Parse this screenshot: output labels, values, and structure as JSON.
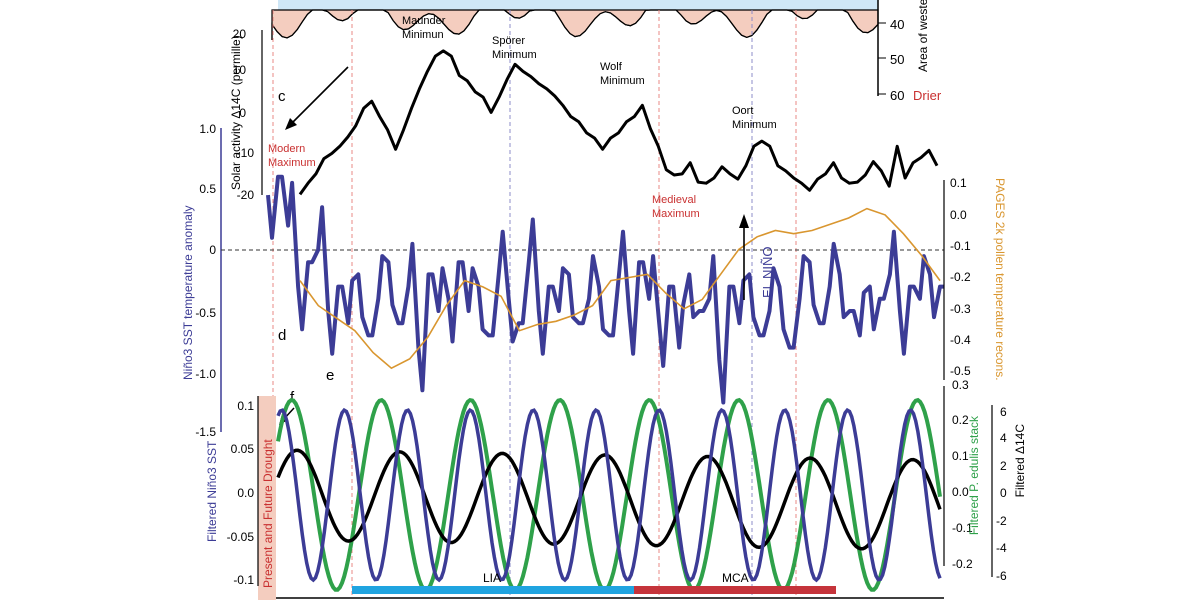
{
  "chart_data": [
    {
      "type": "area",
      "panel_label": "",
      "ylabel": "Area of western US in drought (%)",
      "ylabel_visible": "Area of wester in drought (",
      "drier_label": "Drier",
      "ticks": [
        "40",
        "50",
        "60"
      ],
      "annotations": [
        {
          "text": "Maunder Minimun"
        },
        {
          "text": "Spörer Minimum"
        },
        {
          "text": "Wolf Minimum"
        },
        {
          "text": "Oort Minimum"
        }
      ],
      "series_color": "#f4cdbf"
    },
    {
      "type": "line",
      "panel_label": "c",
      "ylabel": "Solar activity Δ14C (permille)",
      "ticks": [
        "20",
        "10",
        "0",
        "-10",
        "-20"
      ],
      "ylim": [
        -20,
        20
      ],
      "values": [
        -19,
        -17,
        -14,
        -11,
        -9,
        -8,
        -5,
        -3,
        2,
        3,
        0,
        -4,
        -8,
        -4,
        2,
        6,
        11,
        14,
        16,
        14,
        10,
        8,
        6,
        4,
        1,
        4,
        9,
        12,
        11,
        9,
        8,
        6,
        5,
        2,
        0,
        -2,
        -4,
        -6,
        -8,
        -6,
        -4,
        -2,
        0,
        2,
        -3,
        -8,
        -13,
        -15,
        -14,
        -12,
        -16,
        -17,
        -15,
        -13,
        -14,
        -16,
        -12,
        -8,
        -6,
        -8,
        -12,
        -14,
        -15,
        -17,
        -18,
        -16,
        -14,
        -12,
        -15,
        -17,
        -16,
        -15,
        -11,
        -14,
        -17,
        -8,
        -15,
        -12,
        -10,
        -9,
        -12
      ],
      "modern_maximum": "Modern Maximum",
      "medieval_maximum": "Medieval Maximum",
      "color": "#000000"
    },
    {
      "type": "line",
      "panel_label": "d",
      "ylabel": "Niño3 SST temperature anomaly",
      "ticks": [
        "1.0",
        "0.5",
        "0",
        "-0.5",
        "-1.0",
        "-1.5"
      ],
      "ylim": [
        -1.5,
        1.0
      ],
      "el_nino_label": "EL NIÑO",
      "values": [
        0.45,
        0.6,
        0.2,
        -0.3,
        -0.1,
        0.0,
        -0.5,
        -0.3,
        -0.6,
        -0.2,
        -0.7,
        -0.4,
        -0.1,
        -0.6,
        -0.3,
        -0.8,
        -0.2,
        -0.5,
        -0.4,
        -0.1,
        -0.5,
        -0.3,
        -0.7,
        -0.2,
        -0.4,
        -0.6,
        -0.1,
        -0.5,
        -0.3,
        -0.5,
        -0.2,
        -0.6,
        -0.4,
        -0.3,
        -0.7,
        -0.2,
        -0.5,
        -0.1,
        -0.4,
        -0.6,
        -0.3,
        -0.8,
        -0.2,
        -0.5,
        -0.4,
        -0.9,
        -0.3,
        -0.6,
        -0.2,
        -0.7,
        -0.5,
        -0.3,
        -0.8,
        -0.4,
        -0.1,
        -0.6,
        -0.3,
        -0.2,
        -0.5,
        -0.7,
        -0.3,
        -0.4,
        -0.2,
        -0.5,
        -0.3,
        -0.4,
        -0.2,
        -0.3
      ],
      "color": "#3c3c96"
    },
    {
      "type": "line",
      "panel_label": "e",
      "ylabel": "PAGES 2k pollen temperature recons.",
      "ticks": [
        "0.1",
        "0.0",
        "-0.1",
        "-0.2",
        "-0.3",
        "-0.4",
        "-0.5"
      ],
      "ylim": [
        -0.5,
        0.1
      ],
      "values": [
        -0.2,
        -0.28,
        -0.32,
        -0.36,
        -0.43,
        -0.48,
        -0.45,
        -0.38,
        -0.28,
        -0.2,
        -0.22,
        -0.25,
        -0.36,
        -0.34,
        -0.33,
        -0.31,
        -0.28,
        -0.2,
        -0.19,
        -0.18,
        -0.24,
        -0.29,
        -0.26,
        -0.18,
        -0.1,
        -0.06,
        -0.04,
        -0.05,
        -0.04,
        -0.02,
        0.0,
        0.03,
        0.01,
        -0.05,
        -0.12,
        -0.2
      ],
      "color": "#d9962f"
    },
    {
      "type": "line",
      "panel_label": "f",
      "shaded_label": "Present and Future Drought",
      "ylabel_left": "Filtered Niño3 SST",
      "ylabel_right1": "Filtered P. edulis stack",
      "ylabel_right2": "Filtered Δ14C",
      "ticks_left": [
        "0.1",
        "0.05",
        "0.0",
        "-0.05",
        "-0.1"
      ],
      "ticks_right1": [
        "0.3",
        "0.2",
        "0.1",
        "0.0",
        "-0.1",
        "-0.2"
      ],
      "ticks_right2": [
        "6",
        "4",
        "2",
        "0",
        "-2",
        "-4",
        "-6"
      ],
      "period_bars": [
        {
          "label": "LIA",
          "color": "#20a4e0"
        },
        {
          "label": "MCA",
          "color": "#c5343b"
        }
      ],
      "series": [
        {
          "color": "#3c3c96",
          "period": 0.095,
          "amplitude": 1.0
        },
        {
          "color": "#2fa14a",
          "period": 0.135,
          "amplitude": 1.2
        },
        {
          "color": "#000000",
          "period": 0.155,
          "amplitude": 0.6
        }
      ]
    }
  ],
  "colors": {
    "drought_fill": "#f4cdbf",
    "top_blue_fill": "#cfe7f7",
    "red_dash": "#e88a86",
    "blue_dash": "#8c8cc8",
    "red_text": "#c93030",
    "shade": "#f4cdbf"
  }
}
